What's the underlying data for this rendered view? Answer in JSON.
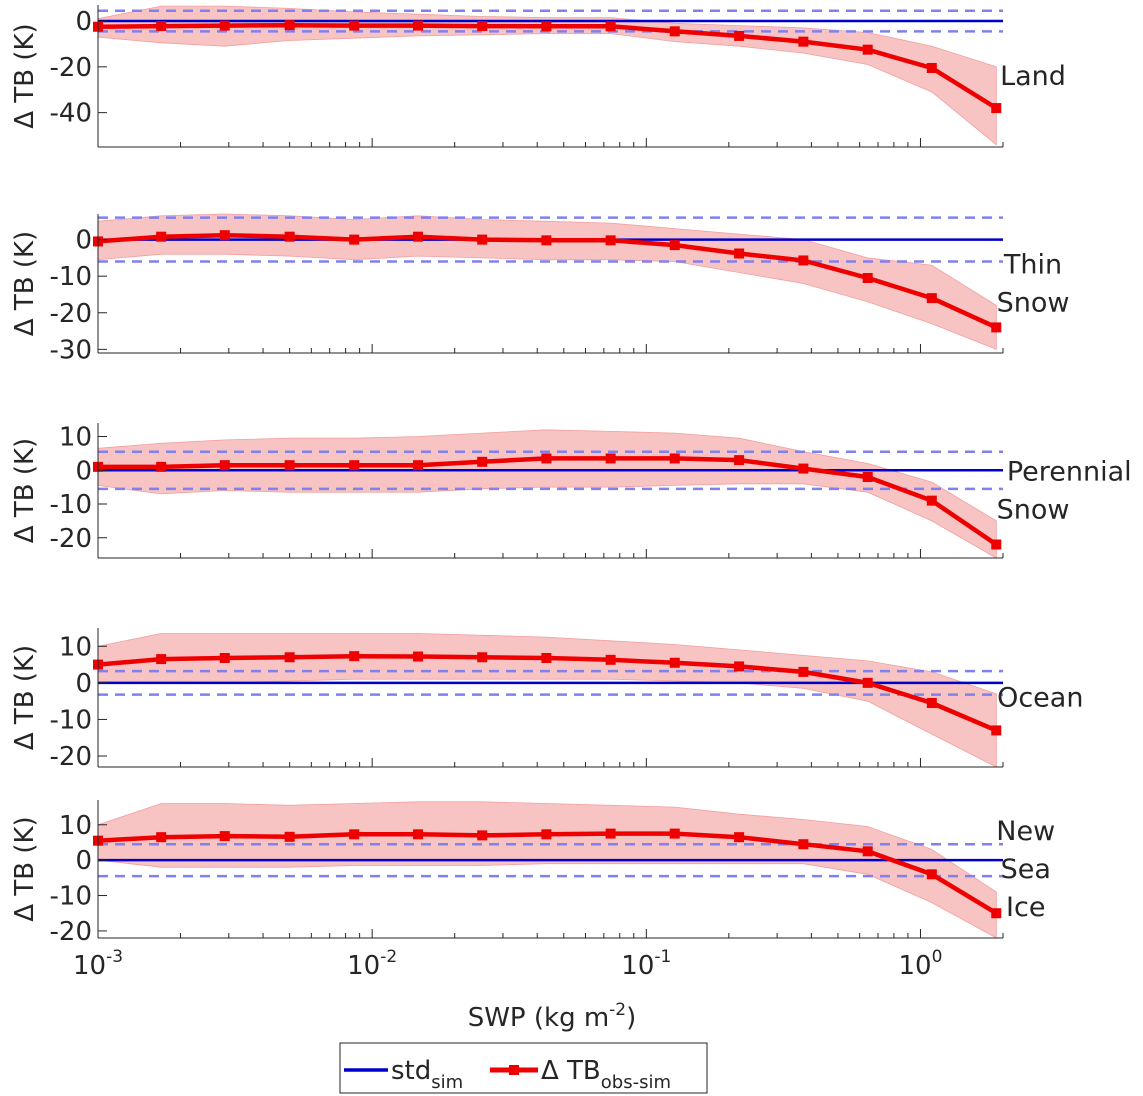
{
  "chart_data": {
    "type": "line",
    "xlabel": "SWP (kg m",
    "xlabel_sup": "-2",
    "xlabel_close": ")",
    "x_scale": "log",
    "xlim": [
      0.001,
      2.0
    ],
    "x_ticks": [
      0.001,
      0.01,
      0.1,
      1
    ],
    "x_tick_labels": [
      {
        "base": "10",
        "exp": "-3"
      },
      {
        "base": "10",
        "exp": "-2"
      },
      {
        "base": "10",
        "exp": "-1"
      },
      {
        "base": "10",
        "exp": "0"
      }
    ],
    "x": [
      0.001,
      0.0017,
      0.0029,
      0.005,
      0.0086,
      0.0147,
      0.0252,
      0.0432,
      0.0741,
      0.127,
      0.218,
      0.374,
      0.642,
      1.1,
      1.89
    ],
    "legend": {
      "placement": "bottom-center",
      "entries": [
        {
          "text": "std",
          "sub": "sim",
          "color": "#0000cc",
          "style": "line"
        },
        {
          "text": "Δ TB",
          "sub": "obs-sim",
          "color": "#ee0000",
          "style": "line-marker"
        }
      ]
    },
    "colors": {
      "std_line": "#0000cc",
      "std_dashed": "#8080ee",
      "delta_line": "#ee0000",
      "band_fill": "#f7c3c3"
    },
    "panels": [
      {
        "ylabel": "Δ TB (K)",
        "side_label": [
          "Land"
        ],
        "ylim": [
          -55,
          7
        ],
        "yticks": [
          0,
          -20,
          -40
        ],
        "ytick_labels": [
          "0",
          "-20",
          "-40"
        ],
        "std_value": 4.5,
        "series": [
          {
            "name": "Δ TB",
            "sub": "obs-sim",
            "values": [
              -2.5,
              -2.2,
              -2.0,
              -1.8,
              -2.0,
              -2.0,
              -2.2,
              -2.3,
              -2.3,
              -4.5,
              -6.5,
              -9.0,
              -12.5,
              -20.5,
              -38.0
            ]
          },
          {
            "role": "spread",
            "upper": [
              1.0,
              6.5,
              6.5,
              5.5,
              4.0,
              3.0,
              2.0,
              1.5,
              1.5,
              -1.0,
              -2.0,
              -3.0,
              -5.0,
              -11.0,
              -20.0
            ],
            "lower": [
              -7.0,
              -9.5,
              -11.0,
              -8.5,
              -7.5,
              -6.5,
              -6.0,
              -5.5,
              -5.5,
              -9.0,
              -11.0,
              -14.0,
              -19.0,
              -31.0,
              -54.0
            ]
          }
        ]
      },
      {
        "ylabel": "Δ TB (K)",
        "side_label": [
          "Thin",
          "Snow"
        ],
        "ylim": [
          -31,
          7
        ],
        "yticks": [
          0,
          -10,
          -20,
          -30
        ],
        "ytick_labels": [
          "0",
          "-10",
          "-20",
          "-30"
        ],
        "std_value": 6.0,
        "series": [
          {
            "name": "Δ TB",
            "sub": "obs-sim",
            "values": [
              -0.5,
              0.8,
              1.2,
              0.8,
              0.0,
              0.8,
              0.0,
              -0.2,
              -0.2,
              -1.5,
              -3.8,
              -5.7,
              -10.5,
              -16.0,
              -24.0
            ]
          },
          {
            "role": "spread",
            "upper": [
              5.0,
              6.5,
              7.0,
              6.5,
              5.5,
              6.5,
              5.5,
              5.0,
              4.5,
              3.0,
              1.5,
              0.0,
              -5.0,
              -7.0,
              -18.0
            ],
            "lower": [
              -5.5,
              -4.0,
              -4.0,
              -4.5,
              -5.5,
              -4.5,
              -5.0,
              -5.5,
              -5.5,
              -6.0,
              -9.0,
              -12.0,
              -17.0,
              -23.0,
              -30.0
            ]
          }
        ]
      },
      {
        "ylabel": "Δ TB (K)",
        "side_label": [
          "Perennial",
          "Snow"
        ],
        "ylim": [
          -26,
          14
        ],
        "yticks": [
          10,
          0,
          -10,
          -20
        ],
        "ytick_labels": [
          "10",
          "0",
          "-10",
          "-20"
        ],
        "std_value": 5.5,
        "series": [
          {
            "name": "Δ TB",
            "sub": "obs-sim",
            "values": [
              1.0,
              1.0,
              1.5,
              1.5,
              1.5,
              1.5,
              2.5,
              3.5,
              3.5,
              3.5,
              3.0,
              0.5,
              -2.0,
              -9.0,
              -22.0
            ]
          },
          {
            "role": "spread",
            "upper": [
              6.5,
              8.0,
              9.0,
              9.5,
              9.5,
              10.0,
              11.0,
              12.0,
              11.5,
              11.0,
              9.5,
              5.5,
              2.0,
              -3.5,
              -15.0
            ],
            "lower": [
              -4.5,
              -7.0,
              -6.0,
              -6.5,
              -6.5,
              -6.5,
              -5.5,
              -5.0,
              -5.0,
              -4.5,
              -4.0,
              -4.0,
              -6.5,
              -15.0,
              -26.0
            ]
          }
        ]
      },
      {
        "ylabel": "Δ TB (K)",
        "side_label": [
          "Ocean"
        ],
        "ylim": [
          -23,
          15
        ],
        "yticks": [
          10,
          0,
          -10,
          -20
        ],
        "ytick_labels": [
          "10",
          "0",
          "-10",
          "-20"
        ],
        "std_value": 3.2,
        "series": [
          {
            "name": "Δ TB",
            "sub": "obs-sim",
            "values": [
              5.0,
              6.5,
              6.8,
              7.0,
              7.3,
              7.2,
              7.0,
              6.8,
              6.3,
              5.5,
              4.5,
              3.0,
              0.0,
              -5.5,
              -13.0
            ]
          },
          {
            "role": "spread",
            "upper": [
              10.0,
              13.5,
              13.5,
              13.5,
              13.5,
              13.5,
              13.0,
              12.5,
              11.5,
              10.5,
              9.0,
              7.5,
              6.0,
              3.0,
              -3.0
            ],
            "lower": [
              0.0,
              0.0,
              0.0,
              0.5,
              1.0,
              1.0,
              1.0,
              1.0,
              1.0,
              0.5,
              0.0,
              -1.5,
              -5.0,
              -14.0,
              -23.0
            ]
          }
        ]
      },
      {
        "ylabel": "Δ TB (K)",
        "side_label": [
          "New",
          "Sea",
          "Ice"
        ],
        "ylim": [
          -22,
          17
        ],
        "yticks": [
          10,
          0,
          -10,
          -20
        ],
        "ytick_labels": [
          "10",
          "0",
          "-10",
          "-20"
        ],
        "std_value": 4.5,
        "series": [
          {
            "name": "Δ TB",
            "sub": "obs-sim",
            "values": [
              5.5,
              6.5,
              6.8,
              6.6,
              7.3,
              7.3,
              7.0,
              7.3,
              7.5,
              7.5,
              6.5,
              4.5,
              2.5,
              -4.0,
              -15.0
            ]
          },
          {
            "role": "spread",
            "upper": [
              10.0,
              16.0,
              16.0,
              15.5,
              16.0,
              16.5,
              16.5,
              16.0,
              15.5,
              15.0,
              13.0,
              11.5,
              9.5,
              3.0,
              -9.0
            ],
            "lower": [
              0.0,
              -2.0,
              -2.0,
              -2.0,
              -1.5,
              -1.5,
              -1.5,
              -1.0,
              -1.0,
              -1.0,
              -1.0,
              -1.0,
              -4.0,
              -12.0,
              -22.0
            ]
          }
        ]
      }
    ]
  }
}
